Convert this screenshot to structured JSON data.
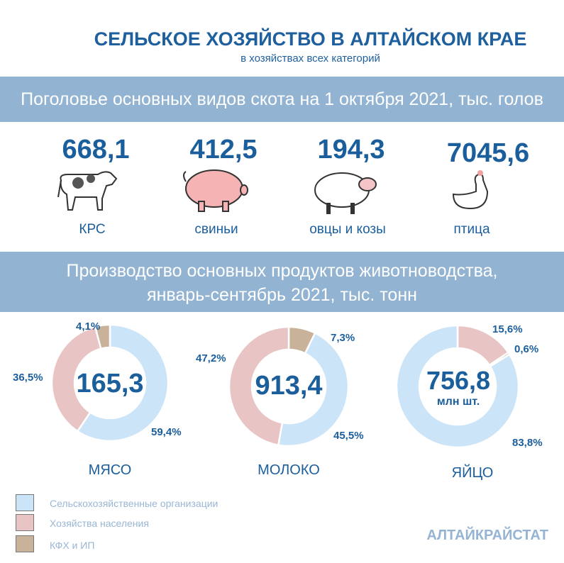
{
  "header": {
    "title": "СЕЛЬСКОЕ ХОЗЯЙСТВО В АЛТАЙСКОМ КРАЕ",
    "subtitle": "в хозяйствах всех категорий"
  },
  "livestock": {
    "heading": "Поголовье основных видов скота на 1 октября 2021, тыс. голов",
    "items": [
      {
        "value": "668,1",
        "label": "КРС",
        "icon": "cow-icon"
      },
      {
        "value": "412,5",
        "label": "свиньи",
        "icon": "pig-icon"
      },
      {
        "value": "194,3",
        "label": "овцы и козы",
        "icon": "sheep-icon"
      },
      {
        "value": "7045,6",
        "label": "птица",
        "icon": "chicken-icon"
      }
    ]
  },
  "production": {
    "heading_line1": "Производство основных продуктов животноводства,",
    "heading_line2": "январь-сентябрь 2021, тыс. тонн"
  },
  "colors": {
    "org": "#cbe4f8",
    "pop": "#e8c4c4",
    "kfh": "#c8b29a"
  },
  "chart_data": [
    {
      "type": "pie",
      "title": "МЯСО",
      "center": "165,3",
      "center_unit": "",
      "segments": [
        {
          "name": "org",
          "value": 59.4,
          "label": "59,4%"
        },
        {
          "name": "pop",
          "value": 36.5,
          "label": "36,5%"
        },
        {
          "name": "kfh",
          "value": 4.1,
          "label": "4,1%"
        }
      ]
    },
    {
      "type": "pie",
      "title": "МОЛОКО",
      "center": "913,4",
      "center_unit": "",
      "segments": [
        {
          "name": "kfh",
          "value": 7.3,
          "label": "7,3%"
        },
        {
          "name": "org",
          "value": 45.5,
          "label": "45,5%"
        },
        {
          "name": "pop",
          "value": 47.2,
          "label": "47,2%"
        }
      ]
    },
    {
      "type": "pie",
      "title": "ЯЙЦО",
      "center": "756,8",
      "center_unit": "млн шт.",
      "segments": [
        {
          "name": "pop",
          "value": 15.6,
          "label": "15,6%"
        },
        {
          "name": "kfh",
          "value": 0.6,
          "label": "0,6%"
        },
        {
          "name": "org",
          "value": 83.8,
          "label": "83,8%"
        }
      ]
    }
  ],
  "legend": [
    {
      "key": "org",
      "label": "Сельскохозяйственные организации"
    },
    {
      "key": "pop",
      "label": "Хозяйства населения"
    },
    {
      "key": "kfh",
      "label": "КФХ и ИП"
    }
  ],
  "brand": "АЛТАЙКРАЙСТАТ"
}
